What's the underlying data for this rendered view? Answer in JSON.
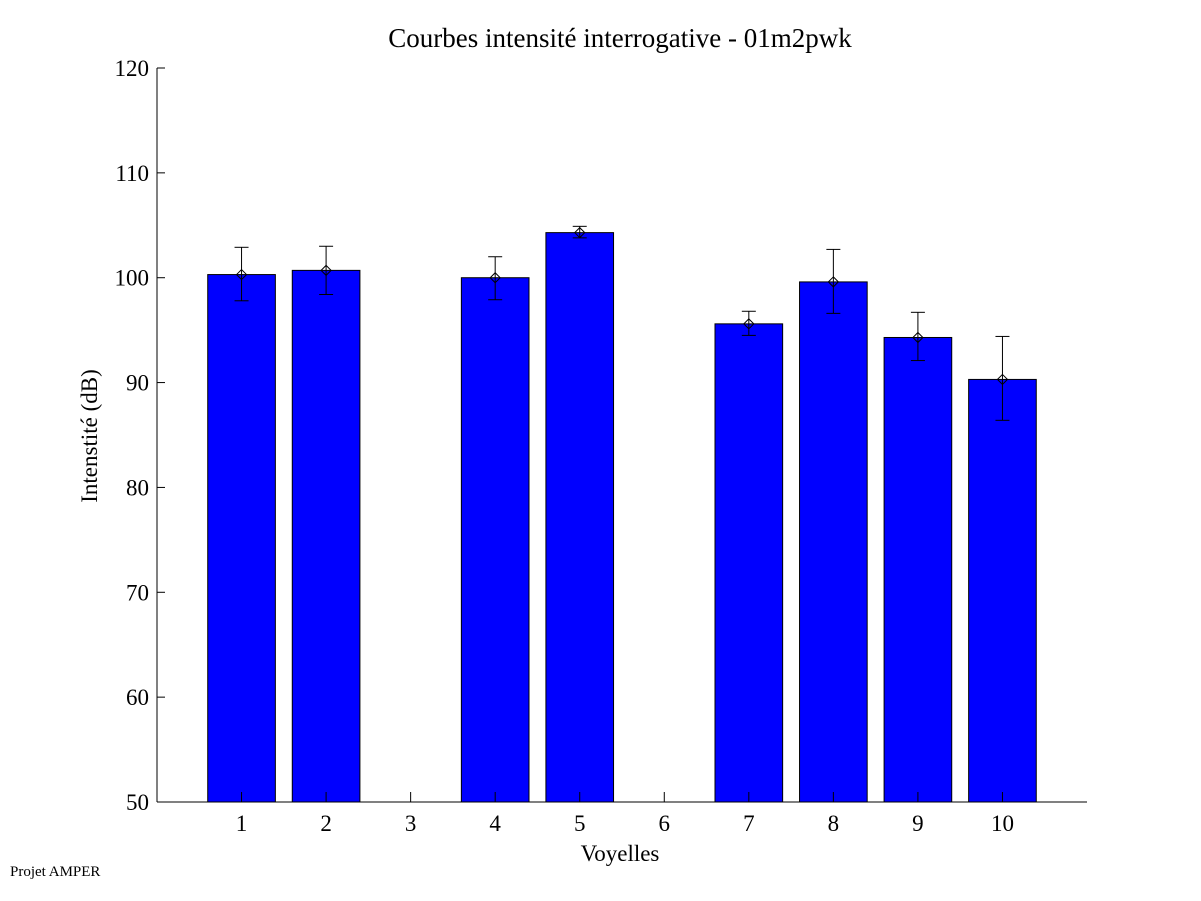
{
  "chart_data": {
    "type": "bar",
    "title": "Courbes intensité interrogative - 01m2pwk",
    "xlabel": "Voyelles",
    "ylabel": "Intenstité (dB)",
    "categories": [
      "1",
      "2",
      "3",
      "4",
      "5",
      "6",
      "7",
      "8",
      "9",
      "10"
    ],
    "values": [
      100.3,
      100.7,
      null,
      100.0,
      104.3,
      null,
      95.6,
      99.6,
      94.3,
      90.3
    ],
    "error_low": [
      97.8,
      98.4,
      null,
      97.9,
      103.8,
      null,
      94.5,
      96.6,
      92.1,
      86.4
    ],
    "error_high": [
      102.9,
      103.0,
      null,
      102.0,
      104.9,
      null,
      96.8,
      102.7,
      96.7,
      94.4
    ],
    "ylim": [
      50,
      120
    ],
    "yticks": [
      50,
      60,
      70,
      80,
      90,
      100,
      110,
      120
    ],
    "bar_color": "#0000ff",
    "grid": false,
    "marker": "diamond"
  },
  "footer": {
    "label": "Projet AMPER"
  }
}
